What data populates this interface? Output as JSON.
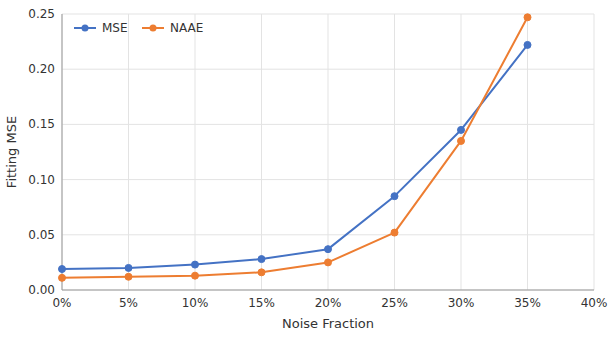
{
  "chart_data": {
    "type": "line",
    "x": [
      0.0,
      0.05,
      0.1,
      0.15,
      0.2,
      0.25,
      0.3,
      0.35
    ],
    "series": [
      {
        "name": "MSE",
        "color": "#4472C4",
        "marker": "circle",
        "values": [
          0.019,
          0.02,
          0.023,
          0.028,
          0.037,
          0.085,
          0.145,
          0.222
        ]
      },
      {
        "name": "NAAE",
        "color": "#ED7D31",
        "marker": "circle",
        "values": [
          0.011,
          0.012,
          0.013,
          0.016,
          0.025,
          0.052,
          0.135,
          0.247
        ]
      }
    ],
    "xlabel": "Noise Fraction",
    "ylabel": "Fitting MSE",
    "xlim": [
      0.0,
      0.4
    ],
    "ylim": [
      0,
      0.25
    ],
    "xticks": [
      {
        "value": 0.0,
        "label": "0%"
      },
      {
        "value": 0.05,
        "label": "5%"
      },
      {
        "value": 0.1,
        "label": "10%"
      },
      {
        "value": 0.15,
        "label": "15%"
      },
      {
        "value": 0.2,
        "label": "20%"
      },
      {
        "value": 0.25,
        "label": "25%"
      },
      {
        "value": 0.3,
        "label": "30%"
      },
      {
        "value": 0.35,
        "label": "35%"
      },
      {
        "value": 0.4,
        "label": "40%"
      }
    ],
    "yticks": [
      {
        "value": 0,
        "label": "0.00"
      },
      0.05,
      {
        "value": 0.1,
        "label": "0.10"
      },
      0.15,
      {
        "value": 0.2,
        "label": "0.20"
      },
      0.25
    ],
    "grid": true,
    "legend": "upper left"
  }
}
